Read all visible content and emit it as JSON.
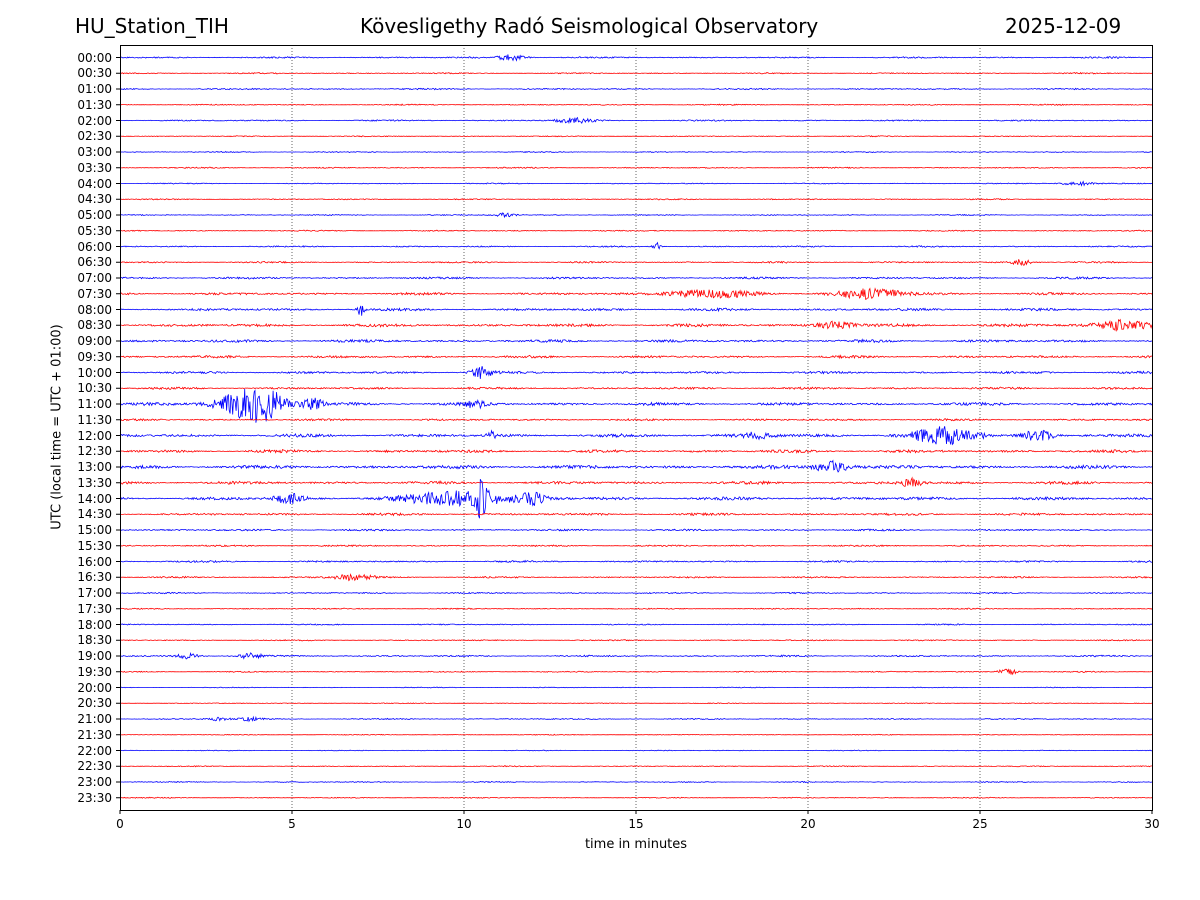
{
  "header": {
    "station": "HU_Station_TIH",
    "title": "Kövesligethy Radó Seismological Observatory",
    "date": "2025-12-09"
  },
  "chart_data": {
    "type": "line",
    "title": "Kövesligethy Radó Seismological Observatory",
    "xlabel": "time in minutes",
    "ylabel": "UTC (local time = UTC + 01:00)",
    "xlim": [
      0,
      30
    ],
    "xticks": [
      "0",
      "5",
      "10",
      "15",
      "20",
      "25",
      "30"
    ],
    "grid": "vertical dotted lines at x ticks",
    "trace_colors": [
      "#0000ff",
      "#ff0000"
    ],
    "rows": [
      "00:00",
      "00:30",
      "01:00",
      "01:30",
      "02:00",
      "02:30",
      "03:00",
      "03:30",
      "04:00",
      "04:30",
      "05:00",
      "05:30",
      "06:00",
      "06:30",
      "07:00",
      "07:30",
      "08:00",
      "08:30",
      "09:00",
      "09:30",
      "10:00",
      "10:30",
      "11:00",
      "11:30",
      "12:00",
      "12:30",
      "13:00",
      "13:30",
      "14:00",
      "14:30",
      "15:00",
      "15:30",
      "16:00",
      "16:30",
      "17:00",
      "17:30",
      "18:00",
      "18:30",
      "19:00",
      "19:30",
      "20:00",
      "20:30",
      "21:00",
      "21:30",
      "22:00",
      "22:30",
      "23:00",
      "23:30"
    ],
    "noise_level": [
      0.8,
      0.6,
      0.7,
      0.6,
      0.7,
      0.5,
      0.5,
      0.6,
      0.5,
      0.6,
      0.5,
      0.6,
      0.7,
      0.8,
      1.0,
      1.2,
      1.3,
      1.5,
      1.4,
      1.2,
      1.2,
      1.1,
      1.5,
      1.0,
      1.6,
      1.5,
      1.8,
      1.5,
      1.6,
      1.2,
      0.9,
      0.8,
      0.9,
      0.8,
      0.7,
      0.6,
      0.6,
      0.6,
      0.8,
      0.6,
      0.4,
      0.4,
      0.6,
      0.4,
      0.4,
      0.5,
      0.5,
      0.5
    ],
    "events": [
      {
        "row": 0,
        "t": 11.4,
        "amp": 3,
        "dur": 0.4
      },
      {
        "row": 4,
        "t": 13.2,
        "amp": 3,
        "dur": 0.5
      },
      {
        "row": 8,
        "t": 27.9,
        "amp": 2,
        "dur": 0.5
      },
      {
        "row": 10,
        "t": 11.2,
        "amp": 2,
        "dur": 0.3
      },
      {
        "row": 12,
        "t": 15.6,
        "amp": 4,
        "dur": 0.1
      },
      {
        "row": 13,
        "t": 26.2,
        "amp": 3,
        "dur": 0.3
      },
      {
        "row": 15,
        "t": 17.0,
        "amp": 4,
        "dur": 1.2
      },
      {
        "row": 15,
        "t": 21.8,
        "amp": 5,
        "dur": 1.0
      },
      {
        "row": 16,
        "t": 7.0,
        "amp": 7,
        "dur": 0.1
      },
      {
        "row": 17,
        "t": 20.8,
        "amp": 4,
        "dur": 0.5
      },
      {
        "row": 17,
        "t": 29.2,
        "amp": 5,
        "dur": 0.8
      },
      {
        "row": 20,
        "t": 10.5,
        "amp": 6,
        "dur": 0.3
      },
      {
        "row": 22,
        "t": 3.5,
        "amp": 10,
        "dur": 0.8
      },
      {
        "row": 22,
        "t": 4.2,
        "amp": 14,
        "dur": 0.6
      },
      {
        "row": 22,
        "t": 5.6,
        "amp": 6,
        "dur": 0.3
      },
      {
        "row": 22,
        "t": 10.3,
        "amp": 4,
        "dur": 0.3
      },
      {
        "row": 24,
        "t": 10.8,
        "amp": 7,
        "dur": 0.1
      },
      {
        "row": 24,
        "t": 18.5,
        "amp": 3,
        "dur": 0.5
      },
      {
        "row": 24,
        "t": 24.0,
        "amp": 8,
        "dur": 1.0
      },
      {
        "row": 24,
        "t": 26.7,
        "amp": 6,
        "dur": 0.4
      },
      {
        "row": 26,
        "t": 20.7,
        "amp": 6,
        "dur": 0.5
      },
      {
        "row": 27,
        "t": 23.0,
        "amp": 4,
        "dur": 0.3
      },
      {
        "row": 28,
        "t": 4.9,
        "amp": 5,
        "dur": 0.4
      },
      {
        "row": 28,
        "t": 10.0,
        "amp": 8,
        "dur": 1.5
      },
      {
        "row": 28,
        "t": 10.5,
        "amp": 14,
        "dur": 0.15
      },
      {
        "row": 28,
        "t": 12.0,
        "amp": 6,
        "dur": 0.3
      },
      {
        "row": 33,
        "t": 6.8,
        "amp": 3,
        "dur": 0.6
      },
      {
        "row": 38,
        "t": 2.0,
        "amp": 3,
        "dur": 0.3
      },
      {
        "row": 38,
        "t": 3.8,
        "amp": 3,
        "dur": 0.3
      },
      {
        "row": 39,
        "t": 25.8,
        "amp": 3,
        "dur": 0.3
      },
      {
        "row": 42,
        "t": 2.9,
        "amp": 2,
        "dur": 0.3
      },
      {
        "row": 42,
        "t": 3.8,
        "amp": 2,
        "dur": 0.3
      }
    ]
  }
}
